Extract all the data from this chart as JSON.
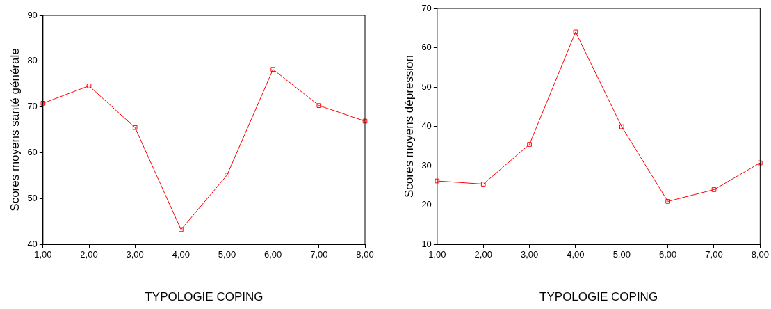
{
  "chart_data": [
    {
      "type": "line",
      "xlabel": "TYPOLOGIE COPING",
      "ylabel": "Scores moyens santé générale",
      "categories": [
        "1,00",
        "2,00",
        "3,00",
        "4,00",
        "5,00",
        "6,00",
        "7,00",
        "8,00"
      ],
      "series": [
        {
          "color": "#ff0000",
          "values": [
            70.8,
            74.6,
            65.5,
            43.2,
            55.1,
            78.2,
            70.3,
            66.9
          ]
        }
      ],
      "ylim": [
        40,
        90
      ],
      "yticks": [
        40,
        50,
        60,
        70,
        80,
        90
      ],
      "grid": false,
      "legend": false,
      "marker": "square",
      "line_style": "solid"
    },
    {
      "type": "line",
      "xlabel": "TYPOLOGIE COPING",
      "ylabel": "Scores moyens dépression",
      "categories": [
        "1,00",
        "2,00",
        "3,00",
        "4,00",
        "5,00",
        "6,00",
        "7,00",
        "8,00"
      ],
      "series": [
        {
          "color": "#ff0000",
          "values": [
            26.1,
            25.3,
            35.4,
            64.0,
            39.9,
            20.9,
            23.9,
            30.7
          ]
        }
      ],
      "ylim": [
        10,
        70
      ],
      "yticks": [
        10,
        20,
        30,
        40,
        50,
        60,
        70
      ],
      "grid": false,
      "legend": false,
      "marker": "square",
      "line_style": "solid"
    }
  ]
}
